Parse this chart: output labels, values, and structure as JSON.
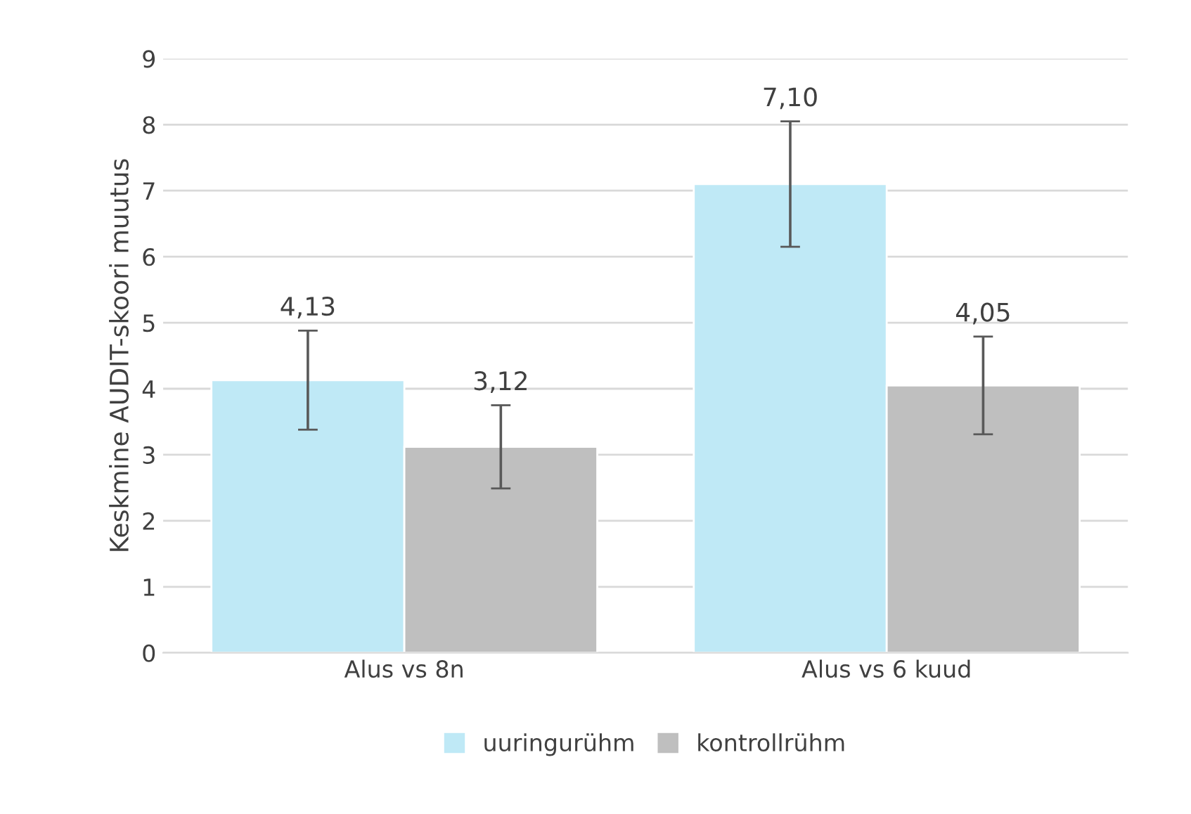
{
  "chart_data": {
    "type": "bar",
    "ylabel": "Keskmine AUDIT-skoori muutus",
    "categories": [
      "Alus vs 8n",
      "Alus vs 6 kuud"
    ],
    "series": [
      {
        "name": "uuringurühm",
        "color": "#bfe9f6",
        "values": [
          4.13,
          7.1
        ],
        "errors": [
          0.75,
          0.95
        ],
        "value_labels": [
          "4,13",
          "7,10"
        ]
      },
      {
        "name": "kontrollrühm",
        "color": "#bfbfbf",
        "values": [
          3.12,
          4.05
        ],
        "errors": [
          0.63,
          0.74
        ],
        "value_labels": [
          "3,12",
          "4,05"
        ]
      }
    ],
    "ylim": [
      0,
      9
    ],
    "yticks": [
      0,
      1,
      2,
      3,
      4,
      5,
      6,
      7,
      8,
      9
    ],
    "grid": "y",
    "legend": "bottom"
  }
}
